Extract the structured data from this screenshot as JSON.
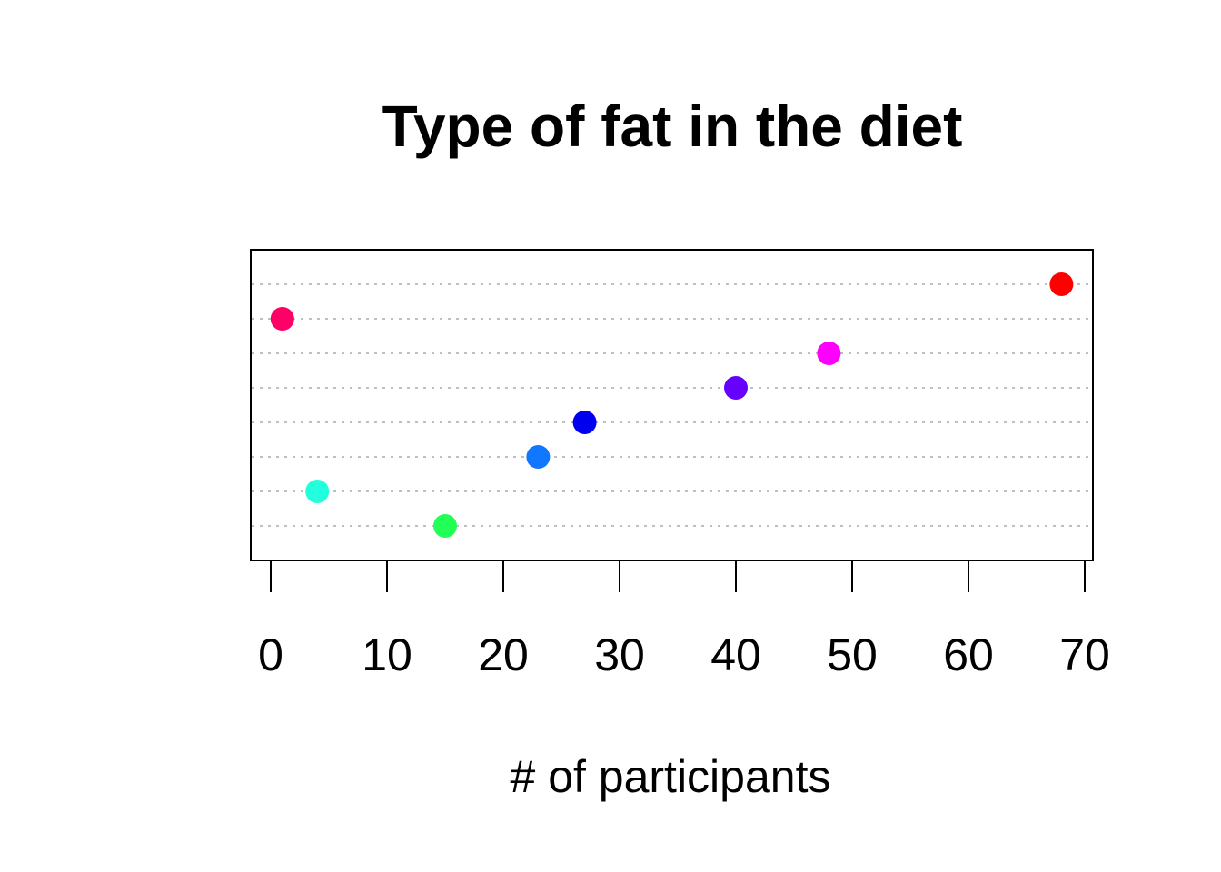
{
  "chart_data": {
    "type": "scatter",
    "title": "Type of fat in the diet",
    "xlabel": "# of participants",
    "ylabel": "",
    "xlim": [
      0,
      70
    ],
    "x_ticks": [
      0,
      10,
      20,
      30,
      40,
      50,
      60,
      70
    ],
    "x_tick_labels": [
      "0",
      "10",
      "20",
      "30",
      "40",
      "50",
      "60",
      "70"
    ],
    "grid": "dotted horizontal lines at each category row",
    "legend": "none",
    "rows": 8,
    "points": [
      {
        "row": 1,
        "x": 15,
        "color": "#22ff55"
      },
      {
        "row": 2,
        "x": 4,
        "color": "#22ffdd"
      },
      {
        "row": 3,
        "x": 23,
        "color": "#1177ff"
      },
      {
        "row": 4,
        "x": 27,
        "color": "#0000ee"
      },
      {
        "row": 5,
        "x": 40,
        "color": "#6600ff"
      },
      {
        "row": 6,
        "x": 48,
        "color": "#ff00ff"
      },
      {
        "row": 7,
        "x": 1,
        "color": "#ff0066"
      },
      {
        "row": 8,
        "x": 68,
        "color": "#ff0000"
      }
    ]
  }
}
